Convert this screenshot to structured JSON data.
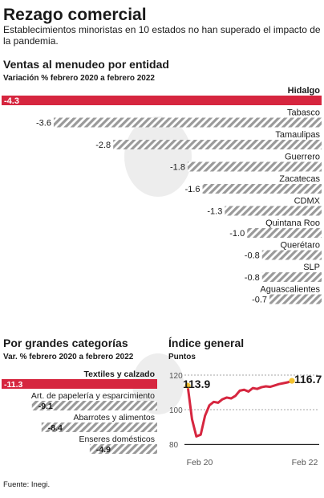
{
  "header": {
    "title": "Rezago comercial",
    "subtitle_line1": "Establecimientos minoristas en 10 estados no han superado el impacto de",
    "subtitle_line2": "la pandemia."
  },
  "colors": {
    "accent": "#d6263f",
    "hatch": "#9a9a9a",
    "text": "#1a1a1a",
    "axis": "#555555"
  },
  "chart_data": [
    {
      "type": "bar",
      "title": "Ventas al menudeo por entidad",
      "subtitle": "Variación % febrero 2020 a febrero 2022",
      "categories": [
        "Hidalgo",
        "Tabasco",
        "Tamaulipas",
        "Guerrero",
        "Zacatecas",
        "CDMX",
        "Quintana Roo",
        "Querétaro",
        "SLP",
        "Aguascalientes"
      ],
      "values": [
        -4.3,
        -3.6,
        -2.8,
        -1.8,
        -1.6,
        -1.3,
        -1.0,
        -0.8,
        -0.8,
        -0.7
      ],
      "value_labels": [
        "-4.3",
        "-3.6",
        "-2.8",
        "-1.8",
        "-1.6",
        "-1.3",
        "-1.0",
        "-0.8",
        "-0.8",
        "-0.7"
      ],
      "highlight": "Hidalgo",
      "xlim": [
        -4.3,
        0
      ]
    },
    {
      "type": "bar",
      "title": "Por grandes categorías",
      "subtitle": "Var. % febrero 2020 a febrero 2022",
      "categories": [
        "Textiles y calzado",
        "Art. de papelería y esparcimiento",
        "Abarrotes y alimentos",
        "Enseres domésticos"
      ],
      "values": [
        -11.3,
        -9.1,
        -8.4,
        -4.9
      ],
      "value_labels": [
        "-11.3",
        "-9.1",
        "-8.4",
        "-4.9"
      ],
      "highlight": "Textiles y calzado",
      "xlim": [
        -11.3,
        0
      ]
    },
    {
      "type": "line",
      "title": "Índice general",
      "ylabel": "Puntos",
      "ylim": [
        80,
        120
      ],
      "yticks": [
        "120",
        "100",
        "80"
      ],
      "xticks": [
        "Feb 20",
        "Feb 22"
      ],
      "x": [
        0,
        1,
        2,
        3,
        4,
        5,
        6,
        7,
        8,
        9,
        10,
        11,
        12,
        13,
        14,
        15,
        16,
        17,
        18,
        19,
        20,
        21,
        22,
        23,
        24
      ],
      "values": [
        113.9,
        94.5,
        84.5,
        85.5,
        96.5,
        102.5,
        104.5,
        104.0,
        106.0,
        107.0,
        106.5,
        108.0,
        111.0,
        111.5,
        110.5,
        112.5,
        112.0,
        113.0,
        113.5,
        113.2,
        114.0,
        114.8,
        115.3,
        115.8,
        116.7
      ],
      "start_label": "113.9",
      "end_label": "116.7"
    }
  ],
  "footer": {
    "source": "Fuente: Inegi."
  }
}
